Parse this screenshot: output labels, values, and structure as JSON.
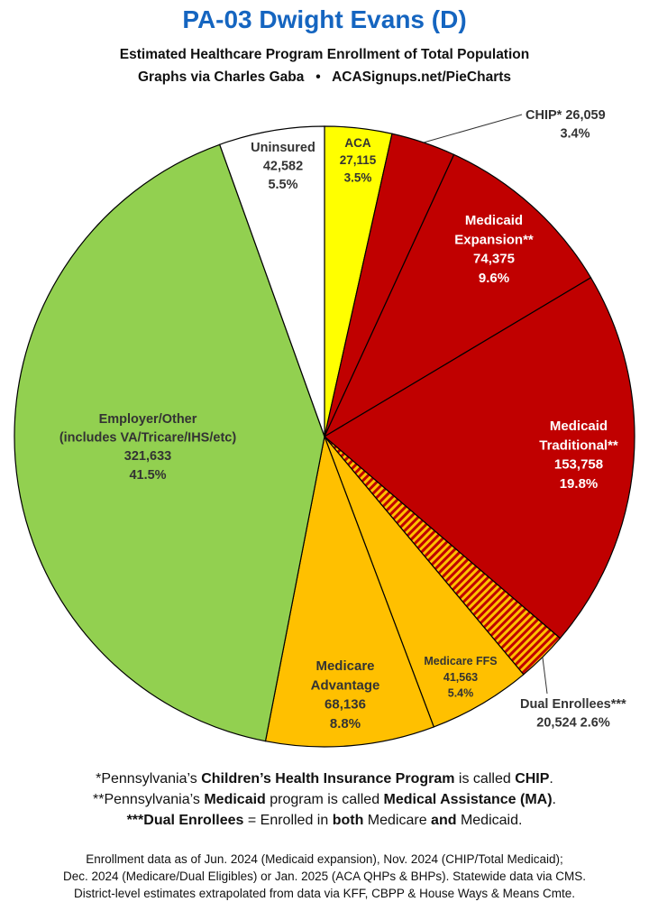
{
  "header": {
    "title": "PA-03 Dwight Evans (D)",
    "subtitle": "Estimated Healthcare Program Enrollment of Total Population",
    "credit_left": "Graphs via Charles Gaba",
    "credit_sep": "•",
    "credit_right": "ACASignups.net/PieCharts"
  },
  "chart_data": {
    "type": "pie",
    "start": "12 o'clock",
    "direction": "clockwise",
    "slices": [
      {
        "label": "ACA",
        "value": 27115,
        "value_label": "27,115",
        "pct_label": "3.5%",
        "color": "#ffff00"
      },
      {
        "label": "CHIP*",
        "value": 26059,
        "value_label": "26,059",
        "pct_label": "3.4%",
        "color": "#c00000"
      },
      {
        "label": "Medicaid Expansion**",
        "value": 74375,
        "value_label": "74,375",
        "pct_label": "9.6%",
        "color": "#c00000"
      },
      {
        "label": "Medicaid Traditional**",
        "value": 153758,
        "value_label": "153,758",
        "pct_label": "19.8%",
        "color": "#c00000"
      },
      {
        "label": "Dual Enrollees***",
        "value": 20524,
        "value_label": "20,524",
        "pct_label": "2.6%",
        "color": "#c00000",
        "pattern": "red/orange stripes"
      },
      {
        "label": "Medicare FFS",
        "value": 41563,
        "value_label": "41,563",
        "pct_label": "5.4%",
        "color": "#ffc000"
      },
      {
        "label": "Medicare Advantage",
        "value": 68136,
        "value_label": "68,136",
        "pct_label": "8.8%",
        "color": "#ffc000"
      },
      {
        "label": "Employer/Other (includes VA/Tricare/IHS/etc)",
        "value": 321633,
        "value_label": "321,633",
        "pct_label": "41.5%",
        "color": "#92d050"
      },
      {
        "label": "Uninsured",
        "value": 42582,
        "value_label": "42,582",
        "pct_label": "5.5%",
        "color": "#ffffff"
      }
    ]
  },
  "notes": {
    "line1": {
      "a": "*Pennsylvania’s ",
      "b": "Children’s Health Insurance Program",
      "c": " is called ",
      "d": "CHIP",
      "e": "."
    },
    "line2": {
      "a": "**Pennsylvania’s ",
      "b": "Medicaid",
      "c": " program is called ",
      "d": "Medical Assistance (MA)",
      "e": "."
    },
    "line3": {
      "a": "***Dual Enrollees",
      "b": " = Enrolled in ",
      "c": "both",
      "d": " Medicare ",
      "e": "and",
      "f": " Medicaid."
    }
  },
  "source": {
    "line1": "Enrollment data as of Jun. 2024 (Medicaid expansion), Nov. 2024 (CHIP/Total Medicaid);",
    "line2": "Dec. 2024 (Medicare/Dual Eligibles) or Jan. 2025 (ACA QHPs & BHPs). Statewide data via CMS.",
    "line3": "District-level estimates extrapolated from data via KFF, CBPP & House Ways & Means Cmte."
  }
}
